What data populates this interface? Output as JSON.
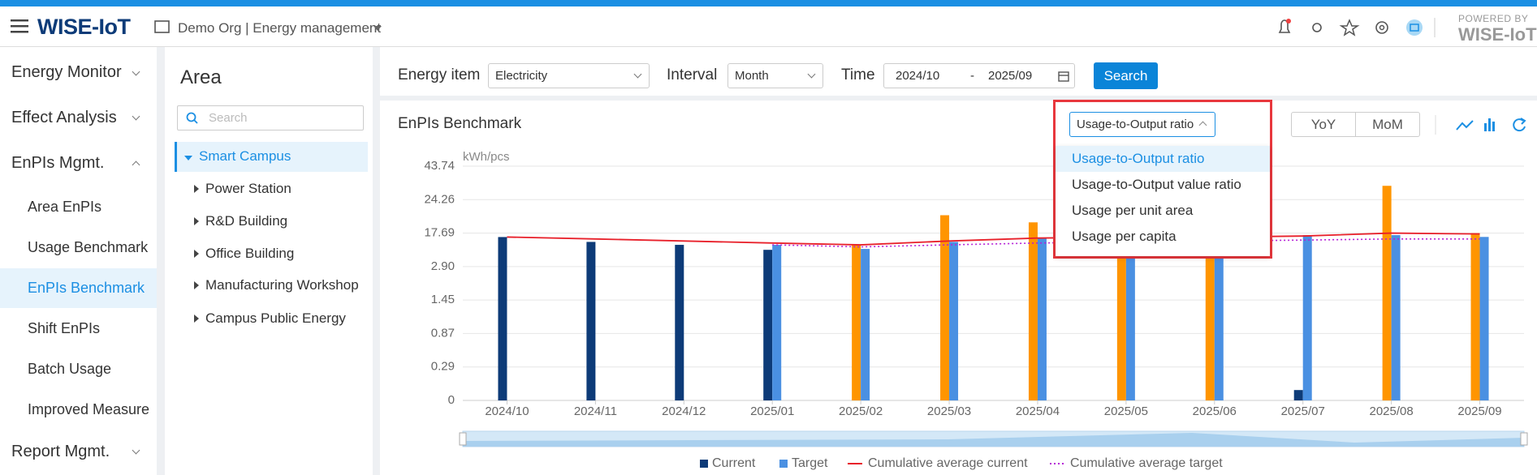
{
  "header": {
    "brand": "WISE-IoT",
    "org": "Demo Org | Energy management",
    "powered_by": "POWERED BY",
    "powered_brand": "WISE-IoT"
  },
  "menu": [
    "Energy Monitor",
    "Effect Analysis",
    "EnPIs Mgmt.",
    "Report Mgmt."
  ],
  "submenu": [
    "Area EnPIs",
    "Usage Benchmark",
    "EnPIs Benchmark",
    "Shift EnPIs",
    "Batch Usage",
    "Improved Measure"
  ],
  "area": {
    "title": "Area",
    "search_placeholder": "Search",
    "tree": [
      "Smart Campus",
      "Power Station",
      "R&D Building",
      "Office Building",
      "Manufacturing Workshop",
      "Campus Public Energy"
    ]
  },
  "filters": {
    "energy_item_label": "Energy item",
    "energy_item": "Electricity",
    "interval_label": "Interval",
    "interval": "Month",
    "time_label": "Time",
    "start": "2024/10",
    "separator": "-",
    "end": "2025/09",
    "search": "Search"
  },
  "panel": {
    "title": "EnPIs Benchmark",
    "selected_metric": "Usage-to-Output ratio",
    "metric_options": [
      "Usage-to-Output ratio",
      "Usage-to-Output value ratio",
      "Usage per unit area",
      "Usage per capita"
    ],
    "buttons": [
      "YoY",
      "MoM"
    ]
  },
  "chart_data": {
    "type": "bar",
    "y_label": "kWh/pcs",
    "yscale": "tick-spaced",
    "categories": [
      "2024/10",
      "2024/11",
      "2024/12",
      "2025/01",
      "2025/02",
      "2025/03",
      "2025/04",
      "2025/05",
      "2025/06",
      "2025/07",
      "2025/08",
      "2025/09"
    ],
    "ylim": [
      0,
      43.74
    ],
    "yticks": [
      0,
      0.29,
      0.87,
      1.45,
      {
        "value": 2.9,
        "label": "2.90"
      },
      17.69,
      24.26,
      43.74
    ],
    "grid": true,
    "series": [
      {
        "name": "Current",
        "type": "bar",
        "color": "#0d3b78",
        "colors": [
          "#0d3b78",
          "#0d3b78",
          "#0d3b78",
          "#0d3b78",
          "#ff9500",
          "#ff9500",
          "#ff9500",
          "#ff9500",
          "#ff9500",
          "#0d3b78",
          "#ff9500",
          "#ff9500"
        ],
        "values": [
          15.95,
          13.8,
          12.5,
          10.3,
          12.5,
          21.2,
          19.8,
          9.5,
          9.8,
          0.09,
          32.3,
          17.69
        ]
      },
      {
        "name": "Target",
        "type": "bar",
        "color": "#4a90e2",
        "values": [
          null,
          null,
          null,
          12.5,
          10.7,
          13.8,
          15.5,
          8.2,
          8.5,
          16.8,
          16.8,
          16.0
        ]
      },
      {
        "name": "Cumulative average current",
        "type": "line",
        "color": "#e8202a",
        "line_style": "solid",
        "values": [
          15.95,
          15.1,
          14.2,
          13.3,
          12.5,
          14.2,
          15.5,
          15.9,
          15.9,
          16.4,
          17.69,
          17.3
        ]
      },
      {
        "name": "Cumulative average target",
        "type": "line",
        "color": "#b51fd6",
        "line_style": "dotted",
        "values": [
          null,
          null,
          null,
          12.5,
          11.6,
          12.5,
          13.3,
          13.8,
          14.2,
          14.6,
          15.1,
          15.1
        ]
      }
    ]
  }
}
